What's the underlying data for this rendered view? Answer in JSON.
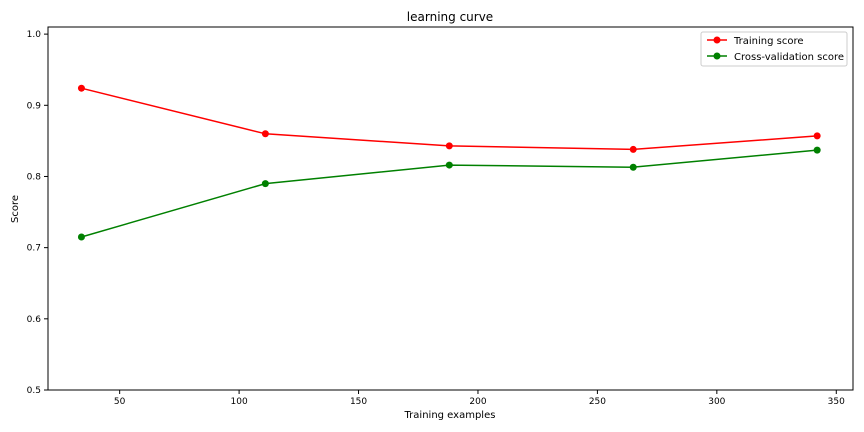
{
  "chart_data": {
    "type": "line",
    "title": "learning curve",
    "xlabel": "Training examples",
    "ylabel": "Score",
    "xlim": [
      20,
      357
    ],
    "ylim": [
      0.5,
      1.01
    ],
    "xticks": [
      50,
      100,
      150,
      200,
      250,
      300,
      350
    ],
    "yticks": [
      0.5,
      0.6,
      0.7,
      0.8,
      0.9,
      1.0
    ],
    "grid": false,
    "legend_position": "top-right",
    "series": [
      {
        "name": "Training score",
        "color": "#ff0000",
        "x": [
          34,
          111,
          188,
          265,
          342
        ],
        "y": [
          0.924,
          0.86,
          0.843,
          0.838,
          0.857
        ]
      },
      {
        "name": "Cross-validation score",
        "color": "#008000",
        "x": [
          34,
          111,
          188,
          265,
          342
        ],
        "y": [
          0.715,
          0.79,
          0.816,
          0.813,
          0.837
        ]
      }
    ]
  }
}
